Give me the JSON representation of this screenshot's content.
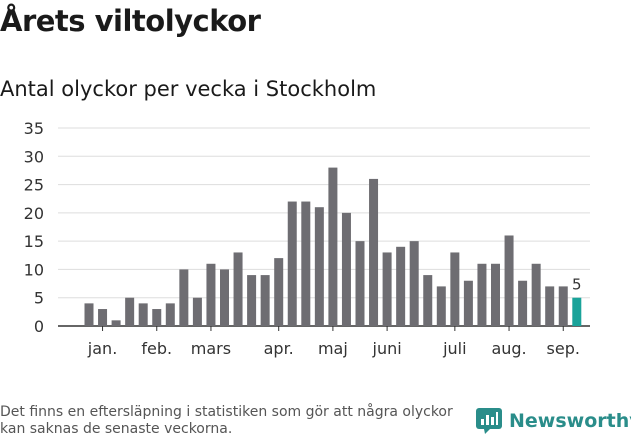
{
  "title": "Årets viltolyckor",
  "subtitle": "Antal olyckor per vecka i Stockholm",
  "footnote": "Det finns en eftersläpning i statistiken som gör att några olyckor kan saknas de senaste veckorna.",
  "brand": {
    "name": "Newsworthy",
    "icon": "newsworthy-logo-icon",
    "color": "#2a8d8a"
  },
  "chart_data": {
    "type": "bar",
    "values": [
      4,
      3,
      1,
      5,
      4,
      3,
      4,
      10,
      5,
      11,
      10,
      13,
      9,
      9,
      12,
      22,
      22,
      21,
      28,
      20,
      15,
      26,
      13,
      14,
      15,
      9,
      7,
      13,
      8,
      11,
      11,
      16,
      8,
      11,
      7,
      7,
      5
    ],
    "month_labels": [
      "jan.",
      "feb.",
      "mars",
      "apr.",
      "maj",
      "juni",
      "juli",
      "aug.",
      "sep."
    ],
    "month_label_week_index": [
      1,
      5,
      9,
      14,
      18,
      22,
      27,
      31,
      35
    ],
    "y_ticks": [
      0,
      5,
      10,
      15,
      20,
      25,
      30,
      35
    ],
    "ylim": [
      0,
      35
    ],
    "last_value_label": "5",
    "bar_color": "#6e6d72",
    "highlight_color": "#1aa39a",
    "grid": true
  }
}
